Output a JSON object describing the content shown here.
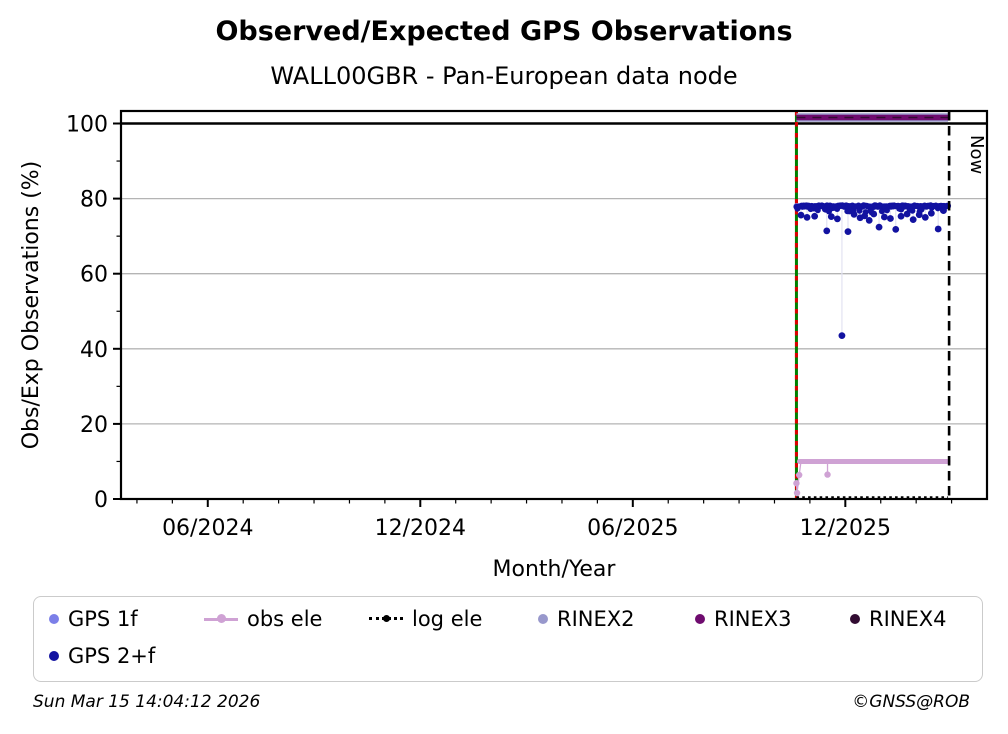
{
  "header": {
    "title": "Observed/Expected GPS Observations",
    "subtitle": "WALL00GBR - Pan-European data node"
  },
  "footer": {
    "timestamp": "Sun Mar 15 14:04:12 2026",
    "credit": "©GNSS@ROB"
  },
  "chart_data": {
    "type": "scatter",
    "title": "Observed/Expected GPS Observations",
    "subtitle": "WALL00GBR - Pan-European data node",
    "xlabel": "Month/Year",
    "ylabel": "Obs/Exp Observations (%)",
    "x_ticks": [
      {
        "label": "06/2024",
        "month_index": 5
      },
      {
        "label": "12/2024",
        "month_index": 11
      },
      {
        "label": "06/2025",
        "month_index": 17
      },
      {
        "label": "12/2025",
        "month_index": 23
      }
    ],
    "x_minor_tick_months": [
      3,
      4,
      6,
      7,
      8,
      9,
      10,
      12,
      13,
      14,
      15,
      16,
      18,
      19,
      20,
      21,
      22,
      24,
      25,
      26
    ],
    "xlim_month_index": [
      2.55,
      27.0
    ],
    "y_ticks": [
      0,
      20,
      40,
      60,
      80,
      100
    ],
    "y_minor_ticks": [
      10,
      30,
      50,
      70,
      90
    ],
    "ylim": [
      0,
      103.3
    ],
    "grid": true,
    "hundred_reference_line": 100,
    "now_marker": {
      "label": "Now",
      "month_index": 25.93
    },
    "data_start_marker": {
      "month_index": 21.62,
      "style": "green-solid-with-red-dashes"
    },
    "data_span_month_index": [
      21.62,
      25.9
    ],
    "series": [
      {
        "name": "RINEX2",
        "type": "line",
        "value": 101.6,
        "visibility": "mostly hidden behind RINEX3 (light fringe)"
      },
      {
        "name": "RINEX3",
        "type": "line",
        "value": 101.6,
        "visibility": "visible thick line"
      },
      {
        "name": "RINEX4",
        "type": "line",
        "value": 101.6,
        "visibility": "hidden behind RINEX3"
      },
      {
        "name": "GPS 1f",
        "type": "scatter",
        "value": 78,
        "visibility": "hidden behind GPS 2+f"
      },
      {
        "name": "GPS 2+f",
        "type": "scatter",
        "base_value": 78,
        "outliers_frac_value": [
          [
            0.03,
            75.6
          ],
          [
            0.07,
            75.0
          ],
          [
            0.12,
            75.3
          ],
          [
            0.2,
            71.4
          ],
          [
            0.23,
            75.2
          ],
          [
            0.27,
            74.6
          ],
          [
            0.3,
            43.5
          ],
          [
            0.34,
            71.2
          ],
          [
            0.38,
            75.8
          ],
          [
            0.42,
            74.9
          ],
          [
            0.45,
            75.4
          ],
          [
            0.48,
            74.2
          ],
          [
            0.51,
            75.9
          ],
          [
            0.545,
            72.4
          ],
          [
            0.58,
            75.1
          ],
          [
            0.62,
            74.7
          ],
          [
            0.655,
            71.8
          ],
          [
            0.69,
            75.3
          ],
          [
            0.73,
            75.9
          ],
          [
            0.77,
            74.4
          ],
          [
            0.81,
            75.7
          ],
          [
            0.85,
            75.0
          ],
          [
            0.89,
            76.1
          ],
          [
            0.935,
            71.9
          ],
          [
            0.97,
            76.8
          ]
        ]
      },
      {
        "name": "obs ele",
        "type": "line",
        "value": 10,
        "start_points_frac_value": [
          [
            0.0,
            4.2
          ],
          [
            0.004,
            1.6
          ],
          [
            0.018,
            6.4
          ]
        ],
        "dips_frac_value": [
          [
            0.205,
            6.5
          ]
        ]
      },
      {
        "name": "log ele",
        "type": "dotted-line",
        "value": 0.4
      }
    ],
    "legend": {
      "items": [
        {
          "label": "GPS 1f",
          "marker": "dot",
          "row": 0
        },
        {
          "label": "obs ele",
          "marker": "line-dot",
          "row": 0
        },
        {
          "label": "log ele",
          "marker": "dotted-dot",
          "row": 0
        },
        {
          "label": "RINEX2",
          "marker": "dot",
          "row": 0
        },
        {
          "label": "RINEX3",
          "marker": "dot",
          "row": 0
        },
        {
          "label": "RINEX4",
          "marker": "dot",
          "row": 0
        },
        {
          "label": "GPS 2+f",
          "marker": "dot",
          "row": 1
        }
      ]
    },
    "colors": {
      "gps_1f": "#7b7fe8",
      "gps_2f": "#1212a0",
      "obs_ele": "#cfa2d4",
      "log_ele": "#000000",
      "rinex2": "#9898cc",
      "rinex3": "#6f0c6f",
      "rinex4": "#320c32",
      "start_line_green": "#008000",
      "start_line_red": "#dc0000",
      "grid": "#b4b4b4",
      "connector": "#e2e2f2",
      "axis": "#000000"
    }
  }
}
